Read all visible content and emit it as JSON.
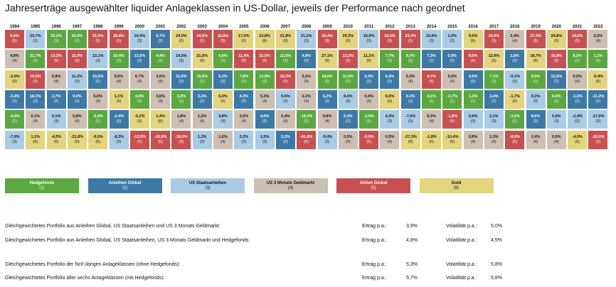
{
  "title": "Jahreserträge ausgewählter liquider Anlageklassen in US-Dollar, jeweils der Performance nach geordnet",
  "chart_data": {
    "type": "table",
    "years": [
      "1994",
      "1995",
      "1996",
      "1997",
      "1998",
      "1999",
      "2000",
      "2001",
      "2002",
      "2003",
      "2004",
      "2005",
      "2006",
      "2007",
      "2008",
      "2009",
      "2010",
      "2011",
      "2012",
      "2013",
      "2014",
      "2015",
      "2016",
      "2017",
      "2018",
      "2019",
      "2020",
      "2021",
      "2022"
    ],
    "columns": [
      [
        [
          "5,0%",
          5
        ],
        [
          "4,8%",
          4
        ],
        [
          "-2,0%",
          6
        ],
        [
          "-3,4%",
          2
        ],
        [
          "-4,4%",
          1
        ],
        [
          "-7,9%",
          3
        ]
      ],
      [
        [
          "23,7%",
          3
        ],
        [
          "21,7%",
          1
        ],
        [
          "19,5%",
          5
        ],
        [
          "18,3%",
          2
        ],
        [
          "6,1%",
          4
        ],
        [
          "1,1%",
          6
        ]
      ],
      [
        [
          "22,2%",
          1
        ],
        [
          "13,2%",
          5
        ],
        [
          "5,8%",
          4
        ],
        [
          "2,7%",
          2
        ],
        [
          "0,1%",
          3
        ],
        [
          "-4,5%",
          6
        ]
      ],
      [
        [
          "25,9%",
          1
        ],
        [
          "15,0%",
          5
        ],
        [
          "11,2%",
          3
        ],
        [
          "9,0%",
          2
        ],
        [
          "5,8%",
          4
        ],
        [
          "-21,8%",
          6
        ]
      ],
      [
        [
          "22,0%",
          5
        ],
        [
          "13,1%",
          3
        ],
        [
          "10,0%",
          2
        ],
        [
          "5,6%",
          4
        ],
        [
          "-0,4%",
          1
        ],
        [
          "-0,5%",
          6
        ]
      ],
      [
        [
          "26,8%",
          5
        ],
        [
          "23,4%",
          1
        ],
        [
          "5,5%",
          4
        ],
        [
          "1,1%",
          6
        ],
        [
          "-2,4%",
          2
        ],
        [
          "-8,3%",
          3
        ]
      ],
      [
        [
          "14,4%",
          3
        ],
        [
          "13,5%",
          2
        ],
        [
          "6,7%",
          4
        ],
        [
          "4,8%",
          1
        ],
        [
          "-6,2%",
          6
        ],
        [
          "-13,9%",
          5
        ]
      ],
      [
        [
          "6,7%",
          2
        ],
        [
          "4,4%",
          1
        ],
        [
          "3,6%",
          4
        ],
        [
          "3,6%",
          4
        ],
        [
          "1,4%",
          6
        ],
        [
          "-15,9%",
          5
        ]
      ],
      [
        [
          "24,0%",
          6
        ],
        [
          "14,5%",
          3
        ],
        [
          "11,6%",
          2
        ],
        [
          "3,0%",
          1
        ],
        [
          "1,8%",
          4
        ],
        [
          "-18,0%",
          5
        ]
      ],
      [
        [
          "34,6%",
          5
        ],
        [
          "21,6%",
          6
        ],
        [
          "15,5%",
          1
        ],
        [
          "3,2%",
          2
        ],
        [
          "1,2%",
          4
        ],
        [
          "1,2%",
          3
        ]
      ],
      [
        [
          "15,8%",
          5
        ],
        [
          "6,6%",
          1
        ],
        [
          "5,2%",
          2
        ],
        [
          "5,0%",
          6
        ],
        [
          "4,8%",
          3
        ],
        [
          "1,6%",
          4
        ]
      ],
      [
        [
          "17,0%",
          6
        ],
        [
          "11,4%",
          5
        ],
        [
          "7,6%",
          1
        ],
        [
          "4,3%",
          2
        ],
        [
          "3,6%",
          4
        ],
        [
          "2,2%",
          3
        ]
      ],
      [
        [
          "23,8%",
          6
        ],
        [
          "21,5%",
          5
        ],
        [
          "13,9%",
          1
        ],
        [
          "5,3%",
          4
        ],
        [
          "4,0%",
          2
        ],
        [
          "1,5%",
          3
        ]
      ],
      [
        [
          "31,8%",
          6
        ],
        [
          "12,6%",
          1
        ],
        [
          "12,2%",
          5
        ],
        [
          "9,6%",
          3
        ],
        [
          "5,4%",
          4
        ],
        [
          "5,2%",
          2
        ]
      ],
      [
        [
          "21,2%",
          3
        ],
        [
          "4,8%",
          2
        ],
        [
          "3,1%",
          4
        ],
        [
          "3,1%",
          4
        ],
        [
          "-19,1%",
          1
        ],
        [
          "-41,8%",
          5
        ]
      ],
      [
        [
          "35,4%",
          5
        ],
        [
          "27,1%",
          6
        ],
        [
          "18,6%",
          1
        ],
        [
          "6,2%",
          2
        ],
        [
          "0,8%",
          4
        ],
        [
          "-9,4%",
          3
        ]
      ],
      [
        [
          "29,3%",
          6
        ],
        [
          "13,2%",
          5
        ],
        [
          "11,0%",
          1
        ],
        [
          "8,6%",
          3
        ],
        [
          "5,4%",
          2
        ],
        [
          "0,5%",
          4
        ]
      ],
      [
        [
          "16,9%",
          3
        ],
        [
          "11,1%",
          6
        ],
        [
          "5,3%",
          2
        ],
        [
          "0,4%",
          4
        ],
        [
          "-2,5%",
          1
        ],
        [
          "-6,9%",
          5
        ]
      ],
      [
        [
          "16,5%",
          5
        ],
        [
          "7,7%",
          1
        ],
        [
          "6,2%",
          2
        ],
        [
          "5,6%",
          6
        ],
        [
          "4,3%",
          3
        ],
        [
          "0,5%",
          4
        ]
      ],
      [
        [
          "23,4%",
          5
        ],
        [
          "9,7%",
          1
        ],
        [
          "0,3%",
          4
        ],
        [
          "0,1%",
          2
        ],
        [
          "-7,6%",
          3
        ],
        [
          "-27,3%",
          6
        ]
      ],
      [
        [
          "10,9%",
          3
        ],
        [
          "7,3%",
          2
        ],
        [
          "4,7%",
          5
        ],
        [
          "4,1%",
          1
        ],
        [
          "0,3%",
          4
        ],
        [
          "-1,8%",
          6
        ]
      ],
      [
        [
          "1,0%",
          3
        ],
        [
          "0,9%",
          2
        ],
        [
          "0,0%",
          4
        ],
        [
          "-0,7%",
          1
        ],
        [
          "-1,8%",
          5
        ],
        [
          "-10,4%",
          6
        ]
      ],
      [
        [
          "9,0%",
          6
        ],
        [
          "8,5%",
          5
        ],
        [
          "4,5%",
          2
        ],
        [
          "1,3%",
          1
        ],
        [
          "0,9%",
          3
        ],
        [
          "0,8%",
          4
        ]
      ],
      [
        [
          "24,6%",
          5
        ],
        [
          "12,6%",
          6
        ],
        [
          "7,1%",
          1
        ],
        [
          "3,4%",
          2
        ],
        [
          "2,1%",
          3
        ],
        [
          "1,3%",
          4
        ]
      ],
      [
        [
          "2,4%",
          4
        ],
        [
          "1,8%",
          2
        ],
        [
          "-0,1%",
          3
        ],
        [
          "-1,7%",
          6
        ],
        [
          "-3,2%",
          1
        ],
        [
          "-8,9%",
          5
        ]
      ],
      [
        [
          "27,3%",
          5
        ],
        [
          "18,7%",
          6
        ],
        [
          "9,5%",
          1
        ],
        [
          "9,3%",
          3
        ],
        [
          "8,5%",
          2
        ],
        [
          "2,4%",
          4
        ]
      ],
      [
        [
          "24,8%",
          6
        ],
        [
          "16,8%",
          5
        ],
        [
          "12,6%",
          2
        ],
        [
          "6,6%",
          1
        ],
        [
          "5,8%",
          3
        ],
        [
          "0,6%",
          4
        ]
      ],
      [
        [
          "19,0%",
          5
        ],
        [
          "8,2%",
          1
        ],
        [
          "0,2%",
          4
        ],
        [
          "-1,2%",
          2
        ],
        [
          "-2,4%",
          3
        ],
        [
          "-4,0%",
          6
        ]
      ],
      [
        [
          "2,5%",
          4
        ],
        [
          "1,1%",
          1
        ],
        [
          "-0,4%",
          6
        ],
        [
          "-11,2%",
          2
        ],
        [
          "-17,0%",
          3
        ],
        [
          "-18,0%",
          5
        ]
      ]
    ]
  },
  "legend": [
    {
      "name": "Hedgefonds",
      "num": "(1)"
    },
    {
      "name": "Anleihen Global",
      "num": "(2)"
    },
    {
      "name": "US Staatsanleihen",
      "num": "(3)"
    },
    {
      "name": "US 3 Monats Geldmarkt",
      "num": "(4)"
    },
    {
      "name": "Aktien Global",
      "num": "(5)"
    },
    {
      "name": "Gold",
      "num": "(6)"
    }
  ],
  "colors": {
    "1": "#5aa83f",
    "2": "#3c79a6",
    "3": "#a9cbe6",
    "4": "#cdbfb1",
    "5": "#c85050",
    "6": "#e4d47e"
  },
  "stats": [
    {
      "label": "Gleichgewichtetes Portfolio aus Anleihen Global, US Staatsanleihen und US 3 Monats Geldmarkt:",
      "ertrag_label": "Ertrag p.a.:",
      "ertrag": "3,9%",
      "vola_label": "Volatilität p.a.:",
      "vola": "5,0%"
    },
    {
      "label": "Gleichgewichtetes Portfolio aus Anleihen Global, US Staatsanleihen, US 3 Monats Geldmarkt und Hedgefonds:",
      "ertrag_label": "Ertrag p.a.:",
      "ertrag": "4,8%",
      "vola_label": "Volatilität p.a.:",
      "vola": "4,5%"
    },
    {
      "label": "Gleichgewichtetes Portfolio der fünf übrigen Anlageklassen (ohne Hedgefonds):",
      "ertrag_label": "Ertrag p.a.:",
      "ertrag": "5,3%",
      "vola_label": "Volatilität p.a.:",
      "vola": "5,8%"
    },
    {
      "label": "Gleichgewichtetes Portfolio aller sechs Anlageklassen (mit Hedgefonds):",
      "ertrag_label": "Ertrag p.a.:",
      "ertrag": "5,7%",
      "vola_label": "Volatilität p.a.:",
      "vola": "5,8%"
    }
  ]
}
